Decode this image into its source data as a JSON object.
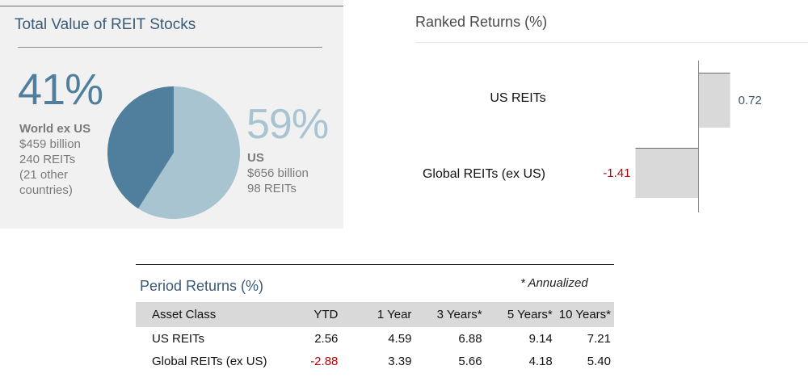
{
  "colors": {
    "world_ex_us": "#4f7f9c",
    "us": "#a9c4d1",
    "bar_fill": "#d9d9d9",
    "negative_text": "#c00000",
    "title_blue": "#3a5b78"
  },
  "pie_panel": {
    "title": "Total Value of REIT Stocks",
    "left": {
      "percent": "41%",
      "name": "World ex US",
      "value": "$459 billion",
      "count": "240 REITs",
      "note_line1": "(21 other",
      "note_line2": "countries)"
    },
    "right": {
      "percent": "59%",
      "name": "US",
      "value": "$656 billion",
      "count": "98 REITs"
    }
  },
  "ranked_panel": {
    "title": "Ranked Returns (%)"
  },
  "table_panel": {
    "title": "Period Returns (%)",
    "note": "* Annualized",
    "headers": [
      "Asset Class",
      "YTD",
      "1 Year",
      "3 Years*",
      "5 Years*",
      "10 Years*"
    ],
    "rows": [
      {
        "label": "US REITs",
        "values": [
          "2.56",
          "4.59",
          "6.88",
          "9.14",
          "7.21"
        ]
      },
      {
        "label": "Global REITs (ex US)",
        "values": [
          "-2.88",
          "3.39",
          "5.66",
          "4.18",
          "5.40"
        ]
      }
    ]
  },
  "chart_data": [
    {
      "type": "pie",
      "title": "Total Value of REIT Stocks",
      "slices": [
        {
          "label": "World ex US",
          "value": 41,
          "billions": 459,
          "reits": 240
        },
        {
          "label": "US",
          "value": 59,
          "billions": 656,
          "reits": 98
        }
      ]
    },
    {
      "type": "bar",
      "orientation": "horizontal",
      "title": "Ranked Returns (%)",
      "categories": [
        "US REITs",
        "Global REITs (ex US)"
      ],
      "values": [
        0.72,
        -1.41
      ],
      "value_labels": [
        "0.72",
        "-1.41"
      ]
    },
    {
      "type": "table",
      "title": "Period Returns (%)",
      "columns": [
        "Asset Class",
        "YTD",
        "1 Year",
        "3 Years*",
        "5 Years*",
        "10 Years*"
      ],
      "rows": [
        [
          "US REITs",
          2.56,
          4.59,
          6.88,
          9.14,
          7.21
        ],
        [
          "Global REITs (ex US)",
          -2.88,
          3.39,
          5.66,
          4.18,
          5.4
        ]
      ]
    }
  ]
}
